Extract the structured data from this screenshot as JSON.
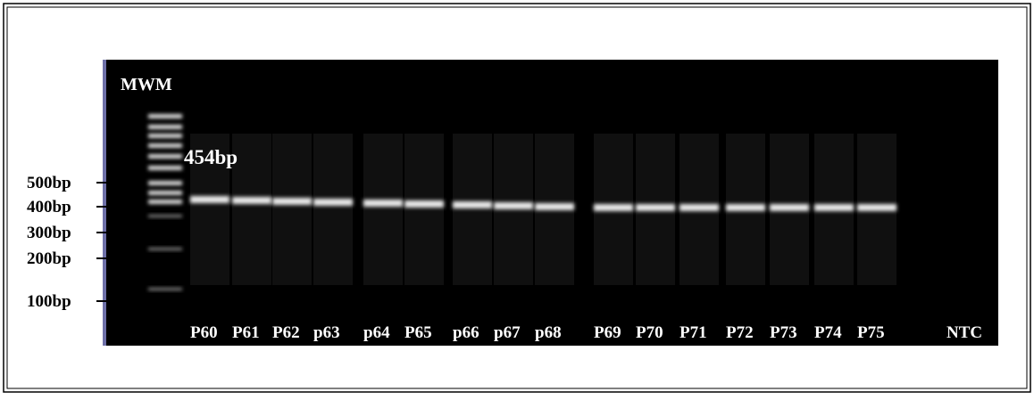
{
  "marker_label": "MWM",
  "band_label": "454bp",
  "ladder_labels": [
    "500bp",
    "400bp",
    "300bp",
    "200bp",
    "100bp"
  ],
  "lane_labels": [
    "P60",
    "P61",
    "P62",
    "p63",
    "p64",
    "P65",
    "p66",
    "p67",
    "p68",
    "P69",
    "P70",
    "P71",
    "P72",
    "P73",
    "P74",
    "P75",
    "NTC"
  ]
}
